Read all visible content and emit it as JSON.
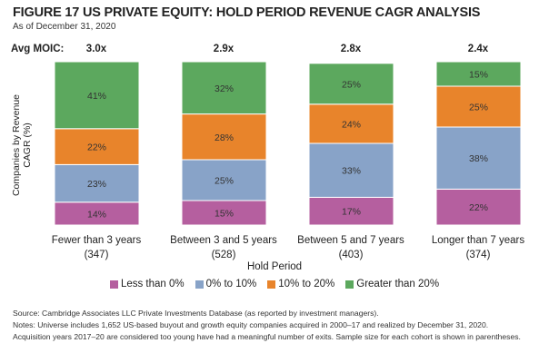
{
  "chart_data": {
    "type": "bar",
    "stacked": true,
    "title": "FIGURE 17 US PRIVATE EQUITY: HOLD PERIOD REVENUE CAGR ANALYSIS",
    "subtitle": "As of December 31, 2020",
    "xlabel": "Hold Period",
    "ylabel": "Companies by Revenue CAGR (%)",
    "ylim": [
      0,
      100
    ],
    "moic_label": "Avg MOIC:",
    "moic": [
      "3.0x",
      "2.9x",
      "2.8x",
      "2.4x"
    ],
    "categories": [
      "Fewer than 3 years",
      "Between 3 and 5 years",
      "Between 5 and 7 years",
      "Longer than 7 years"
    ],
    "sample_sizes": [
      "(347)",
      "(528)",
      "(403)",
      "(374)"
    ],
    "series": [
      {
        "name": "Less than 0%",
        "color": "#b55f9f",
        "values": [
          14,
          15,
          17,
          22
        ]
      },
      {
        "name": "0% to 10%",
        "color": "#88a3c8",
        "values": [
          23,
          25,
          33,
          38
        ]
      },
      {
        "name": "10% to 20%",
        "color": "#e8842b",
        "values": [
          22,
          28,
          24,
          25
        ]
      },
      {
        "name": "Greater than 20%",
        "color": "#5ca85e",
        "values": [
          41,
          32,
          25,
          15
        ]
      }
    ],
    "legend_position": "bottom"
  },
  "footer": {
    "source": "Source: Cambridge Associates LLC Private Investments Database (as reported by investment managers).",
    "notes1": "Notes: Universe includes 1,652 US-based buyout and growth equity companies acquired in 2000–17 and realized by December 31, 2020.",
    "notes2": "Acquisition years 2017–20 are considered too young have had a meaningful number of exits. Sample size for each cohort is shown in parentheses."
  }
}
